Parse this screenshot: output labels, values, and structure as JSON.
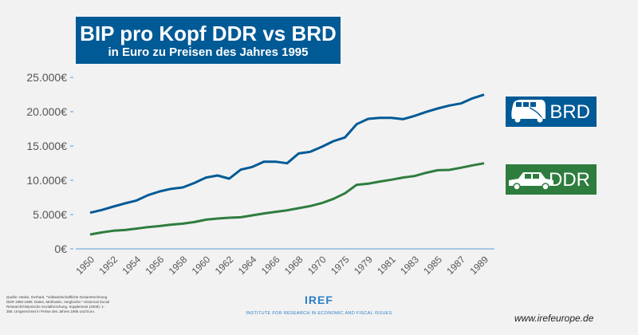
{
  "chart_data": {
    "type": "line",
    "title": "BIP pro Kopf DDR vs BRD",
    "subtitle": "in Euro zu Preisen des Jahres 1995",
    "x": [
      "1950",
      "1951",
      "1952",
      "1953",
      "1954",
      "1955",
      "1956",
      "1957",
      "1958",
      "1959",
      "1960",
      "1961",
      "1962",
      "1963",
      "1964",
      "1965",
      "1966",
      "1967",
      "1968",
      "1969",
      "1970",
      "1972",
      "1975",
      "1977",
      "1979",
      "1980",
      "1981",
      "1982",
      "1983",
      "1984",
      "1985",
      "1986",
      "1987",
      "1988",
      "1989"
    ],
    "x_tick_labels": [
      "1950",
      "1952",
      "1954",
      "1956",
      "1958",
      "1960",
      "1962",
      "1964",
      "1966",
      "1968",
      "1970",
      "1975",
      "1979",
      "1981",
      "1983",
      "1985",
      "1987",
      "1989"
    ],
    "y_tick_labels": [
      "0€",
      "5.000€",
      "10.000€",
      "15.000€",
      "20.000€",
      "25.000€"
    ],
    "ylim": [
      0,
      25000
    ],
    "grid": false,
    "series": [
      {
        "name": "BRD",
        "color": "#005a96",
        "icon": "vw-bus-icon",
        "values": [
          5270,
          5660,
          6160,
          6630,
          7050,
          7830,
          8370,
          8760,
          8950,
          9610,
          10390,
          10700,
          10230,
          11550,
          11940,
          12710,
          12710,
          12480,
          13910,
          14150,
          14880,
          15700,
          16240,
          18180,
          18950,
          19110,
          19110,
          18910,
          19380,
          19960,
          20470,
          20890,
          21200,
          21940,
          22480
        ]
      },
      {
        "name": "DDR",
        "color": "#2e7d3e",
        "icon": "trabant-car-icon",
        "values": [
          2090,
          2400,
          2640,
          2750,
          2950,
          3180,
          3330,
          3530,
          3680,
          3910,
          4260,
          4420,
          4530,
          4610,
          4880,
          5160,
          5390,
          5620,
          5930,
          6240,
          6670,
          7290,
          8100,
          9340,
          9500,
          9810,
          10080,
          10390,
          10620,
          11090,
          11470,
          11510,
          11820,
          12170,
          12480
        ]
      }
    ]
  },
  "footer": {
    "source": "Quelle: Heske, Gerhard. \"Volkswirtschaftliche Gesamtrechnung DDR 1950-1989. Daten, Methoden, Vergleiche.\" Historical Social Research/Historische Sozialforschung. Supplement (2009): 1-356. Umgerechnet in Preise des Jahres 1995 und Euro.",
    "logo": "IREF",
    "institute": "INSTITUTE FOR RESEARCH IN ECONOMIC AND FISCAL ISSUES",
    "url": "www.irefeurope.de"
  }
}
